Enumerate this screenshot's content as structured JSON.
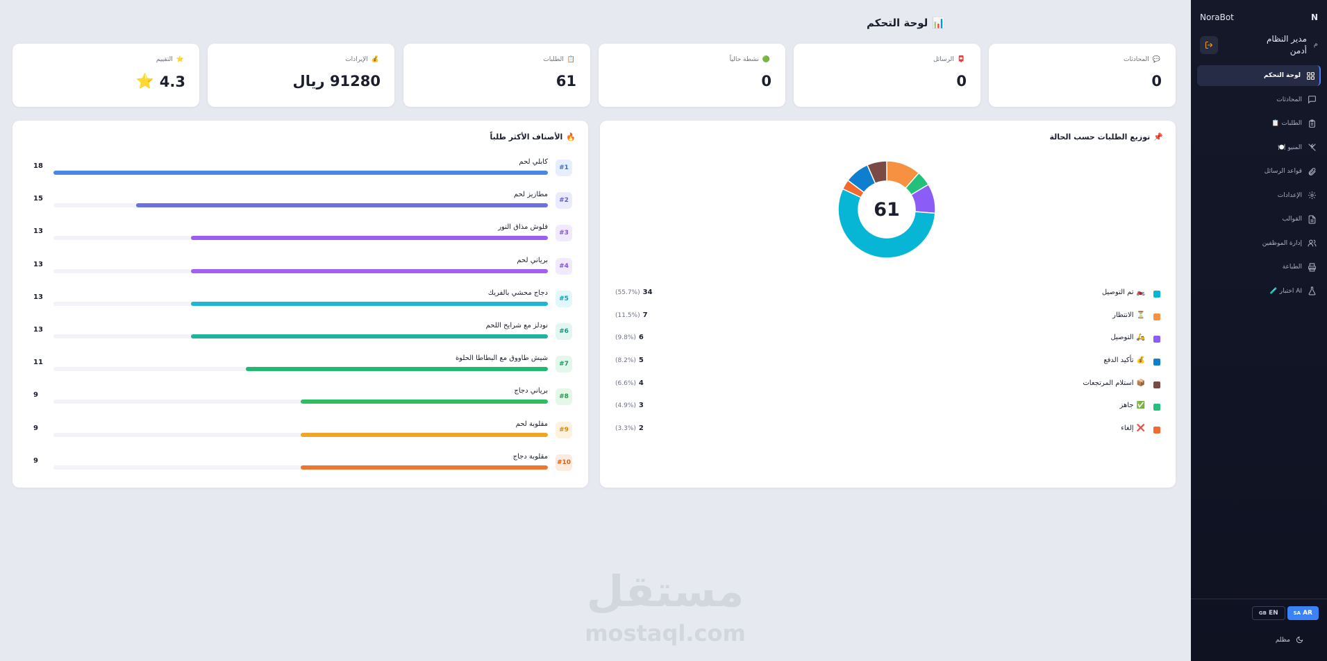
{
  "sidebar": {
    "brand": "NoraBot",
    "brand_letter": "N",
    "user_role": "مدير النظام",
    "user_name": "أدمن",
    "user_initial": "م",
    "items": [
      {
        "label": "لوحة التحكم",
        "icon": "dashboard-icon",
        "active": true
      },
      {
        "label": "المحادثات",
        "icon": "chat-icon",
        "active": false
      },
      {
        "label": "📋 الطلبات",
        "icon": "clipboard-icon",
        "active": false
      },
      {
        "label": "🍽️ المنيو",
        "icon": "utensils-icon",
        "active": false
      },
      {
        "label": "قواعد الرسائل",
        "icon": "paperclip-icon",
        "active": false
      },
      {
        "label": "الإعدادات",
        "icon": "gear-icon",
        "active": false
      },
      {
        "label": "القوالب",
        "icon": "document-icon",
        "active": false
      },
      {
        "label": "إدارة الموظفين",
        "icon": "users-icon",
        "active": false
      },
      {
        "label": "الطباعة",
        "icon": "printer-icon",
        "active": false
      },
      {
        "label": "🧪 اختبار AI",
        "icon": "flask-icon",
        "active": false
      }
    ],
    "lang_ar": "AR",
    "lang_ar_flag": "SA",
    "lang_en": "EN",
    "lang_en_flag": "GB",
    "theme_label": "مظلم"
  },
  "header": {
    "title": "لوحة التحكم",
    "title_emoji": "📊"
  },
  "stats": [
    {
      "label": "المحادثات",
      "emoji": "💬",
      "value": "0"
    },
    {
      "label": "الرسائل",
      "emoji": "📮",
      "value": "0"
    },
    {
      "label": "نشطة حالياً",
      "emoji": "🟢",
      "value": "0"
    },
    {
      "label": "الطلبات",
      "emoji": "📋",
      "value": "61"
    },
    {
      "label": "الإيرادات",
      "emoji": "💰",
      "value": "91280 ريال"
    },
    {
      "label": "التقييم",
      "emoji": "⭐",
      "value": "4.3",
      "value_emoji": "⭐"
    }
  ],
  "status_panel": {
    "title": "توزيع الطلبات حسب الحالة",
    "title_emoji": "📌",
    "total": "61"
  },
  "chart_data": {
    "type": "pie",
    "title": "توزيع الطلبات حسب الحالة",
    "categories": [
      "تم التوصيل",
      "الانتظار",
      "التوصيل",
      "تأكيد الدفع",
      "استلام المرتجعات",
      "جاهز",
      "إلغاء"
    ],
    "values": [
      34,
      7,
      6,
      5,
      4,
      3,
      2
    ],
    "percent_labels": [
      "(55.7%)",
      "(11.5%)",
      "(9.8%)",
      "(8.2%)",
      "(6.6%)",
      "(4.9%)",
      "(3.3%)"
    ],
    "emojis": [
      "🏍️",
      "⏳",
      "🛵",
      "💰",
      "📦",
      "✅",
      "❌"
    ],
    "colors": [
      "#06b6d4",
      "#f59140",
      "#8b5cf6",
      "#0e7fcf",
      "#7a4a45",
      "#22c07a",
      "#f26a2e"
    ],
    "legend": "bottom"
  },
  "items_panel": {
    "title": "الأصناف الأكثر طلباً",
    "title_emoji": "🔥",
    "max": 18,
    "items": [
      {
        "rank": "#1",
        "name": "كابلي لحم",
        "count": 18,
        "color": "#4a86e8",
        "rank_bg": "#e6efff",
        "rank_color": "#3b6fd6"
      },
      {
        "rank": "#2",
        "name": "مطازيز لحم",
        "count": 15,
        "color": "#6a6fe6",
        "rank_bg": "#ebeaff",
        "rank_color": "#5b5fd8"
      },
      {
        "rank": "#3",
        "name": "فلوش مذاق النور",
        "count": 13,
        "color": "#9a5ef0",
        "rank_bg": "#f1eafe",
        "rank_color": "#8a4ee6"
      },
      {
        "rank": "#4",
        "name": "برياني لحم",
        "count": 13,
        "color": "#a35ef2",
        "rank_bg": "#f1eafe",
        "rank_color": "#8a4ee6"
      },
      {
        "rank": "#5",
        "name": "دجاج محشي بالفريك",
        "count": 13,
        "color": "#1eb6d2",
        "rank_bg": "#e3f7fb",
        "rank_color": "#0c9bb6"
      },
      {
        "rank": "#6",
        "name": "نودلز مع شرايح اللحم",
        "count": 13,
        "color": "#1fb39c",
        "rank_bg": "#e2f7f2",
        "rank_color": "#12977f"
      },
      {
        "rank": "#7",
        "name": "شيش طاووق مع البطاطا الحلوة",
        "count": 11,
        "color": "#22b873",
        "rank_bg": "#e3f7ec",
        "rank_color": "#179a5d"
      },
      {
        "rank": "#8",
        "name": "برياني دجاج",
        "count": 9,
        "color": "#2fbd62",
        "rank_bg": "#e4f7e9",
        "rank_color": "#1f9c4d"
      },
      {
        "rank": "#9",
        "name": "مقلوبة لحم",
        "count": 9,
        "color": "#f0a524",
        "rank_bg": "#fdf2dd",
        "rank_color": "#d48a0d"
      },
      {
        "rank": "#10",
        "name": "مقلوبة دجاج",
        "count": 9,
        "color": "#ef7630",
        "rank_bg": "#fdebdf",
        "rank_color": "#d8601c"
      }
    ]
  },
  "watermark": {
    "ar": "مستقل",
    "en": "mostaql.com"
  }
}
